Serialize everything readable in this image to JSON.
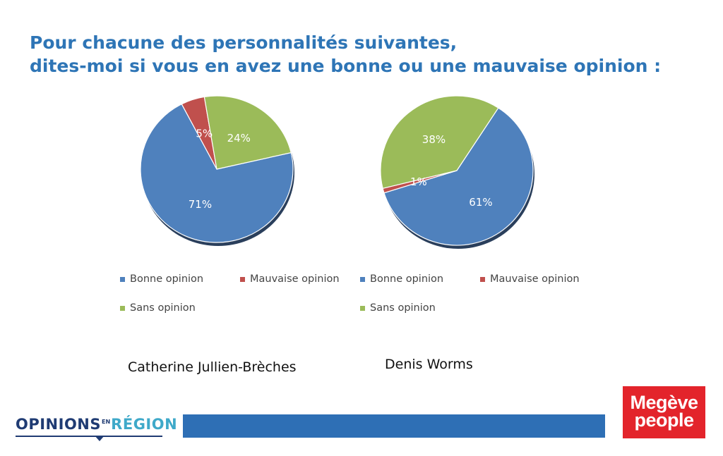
{
  "title": {
    "line1": "Pour chacune des personnalités suivantes,",
    "line2": "dites-moi si vous en avez une bonne ou une mauvaise opinion :"
  },
  "chart_data": [
    {
      "type": "pie",
      "name": "Catherine Jullien-Brèches",
      "categories": [
        "Bonne opinion",
        "Mauvaise opinion",
        "Sans opinion"
      ],
      "values": [
        71,
        5,
        24
      ],
      "labels": [
        "71%",
        "5%",
        "24%"
      ],
      "colors": [
        "#4f81bd",
        "#c0504d",
        "#9bbb59"
      ],
      "legend": "bottom"
    },
    {
      "type": "pie",
      "name": "Denis Worms",
      "categories": [
        "Bonne opinion",
        "Mauvaise opinion",
        "Sans opinion"
      ],
      "values": [
        61,
        1,
        38
      ],
      "labels": [
        "61%",
        "1%",
        "38%"
      ],
      "colors": [
        "#4f81bd",
        "#c0504d",
        "#9bbb59"
      ],
      "legend": "bottom"
    }
  ],
  "persons": [
    "Catherine Jullien-Brèches",
    "Denis Worms"
  ],
  "logos": {
    "opinions_part1": "OPINIONS",
    "opinions_small": "EN",
    "opinions_part2": "RÉGION",
    "megeve_line1": "Megève",
    "megeve_line2": "people"
  }
}
